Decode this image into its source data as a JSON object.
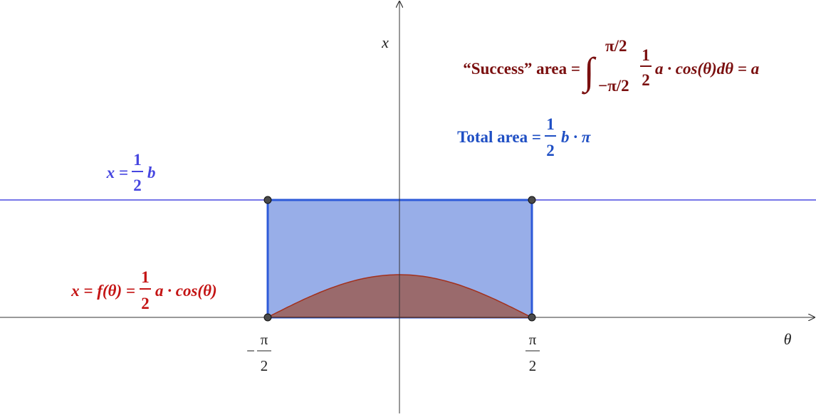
{
  "axes": {
    "x_label": "θ",
    "y_label": "x"
  },
  "ticks": [
    {
      "sign": "−",
      "numerator": "π",
      "denominator": "2"
    },
    {
      "numerator": "π",
      "denominator": "2"
    }
  ],
  "labels": {
    "success": {
      "prefix": "“Success” area =",
      "integral": "∫",
      "upper": "π/2",
      "lower": "−π/2",
      "numerator": "1",
      "denominator": "2",
      "suffix": "a · cos(θ)dθ = a"
    },
    "total": {
      "prefix": "Total area =",
      "numerator": "1",
      "denominator": "2",
      "suffix": "b · π"
    },
    "line": {
      "prefix": "x =",
      "numerator": "1",
      "denominator": "2",
      "suffix": "b"
    },
    "curve": {
      "prefix": "x = f(θ) =",
      "numerator": "1",
      "denominator": "2",
      "suffix": "a · cos(θ)"
    }
  }
}
